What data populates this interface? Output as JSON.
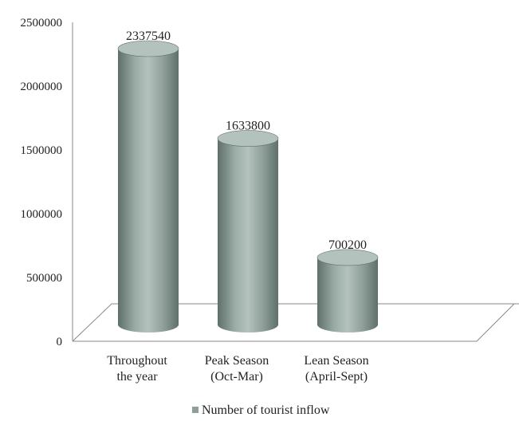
{
  "chart_data": {
    "type": "bar",
    "style": "3d-cylinder",
    "categories": [
      [
        "Throughout",
        "the year"
      ],
      [
        "Peak Season",
        "(Oct-Mar)"
      ],
      [
        "Lean Season",
        "(April-Sept)"
      ]
    ],
    "series": [
      {
        "name": "Number of tourist inflow",
        "values": [
          2337540,
          1633800,
          700200
        ],
        "color": "#8e9e99"
      }
    ],
    "data_labels": [
      "2337540",
      "1633800",
      "700200"
    ],
    "ylim": [
      0,
      2500000
    ],
    "yticks": [
      0,
      500000,
      1000000,
      1500000,
      2000000,
      2500000
    ],
    "ytick_labels": [
      "0",
      "500000",
      "1000000",
      "1500000",
      "2000000",
      "2500000"
    ],
    "grid": false,
    "legend_position": "bottom"
  },
  "colors": {
    "bar": "#8e9e99",
    "bar_dark": "#5f6f6a",
    "bar_light": "#b4c2bd",
    "axis": "#8a8a8a"
  }
}
